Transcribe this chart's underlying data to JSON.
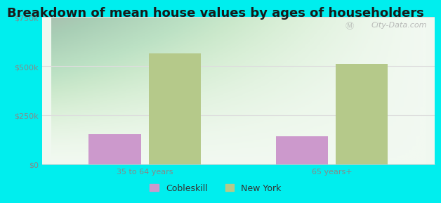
{
  "title": "Breakdown of mean house values by ages of householders",
  "categories": [
    "35 to 64 years",
    "65 years+"
  ],
  "series": {
    "Cobleskill": [
      155000,
      145000
    ],
    "New York": [
      565000,
      510000
    ]
  },
  "bar_colors": {
    "Cobleskill": "#cc99cc",
    "New York": "#b5c98a"
  },
  "ylim": [
    0,
    750000
  ],
  "yticks": [
    0,
    250000,
    500000,
    750000
  ],
  "ytick_labels": [
    "$0",
    "$250k",
    "$500k",
    "$750k"
  ],
  "background_color": "#00eeee",
  "title_fontsize": 13,
  "tick_fontsize": 8,
  "legend_fontsize": 9,
  "bar_width": 0.28,
  "watermark": "City-Data.com"
}
